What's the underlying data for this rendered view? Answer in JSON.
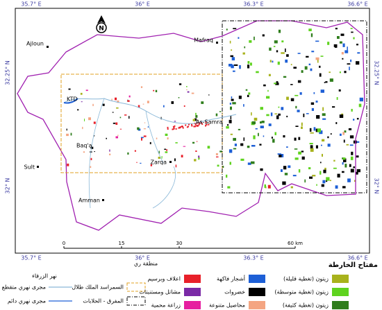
{
  "map": {
    "coords": {
      "top": [
        "35.7° E",
        "36° E",
        "36.3° E",
        "36.6° E"
      ],
      "bottom": [
        "35.7° E",
        "36° E",
        "36.3° E",
        "36.6° E"
      ],
      "left": [
        "32.25° N",
        "32° N"
      ],
      "right": [
        "32.25° N",
        "32° N"
      ]
    },
    "places": [
      "Ajloun",
      "Mafraq",
      "KTD",
      "As-Samra",
      "Baq'a",
      "Zarqa",
      "Sult",
      "Amman"
    ],
    "north": "N",
    "scale": [
      "0",
      "15",
      "30",
      "60 km"
    ],
    "legend": {
      "title": "مفتاح الخارطة",
      "items": [
        {
          "label": "زيتون (تغطية قليلة)",
          "color": "#a8b21c"
        },
        {
          "label": "زيتون (تغطية متوسطة)",
          "color": "#5fd31f"
        },
        {
          "label": "زيتون (تغطية كثيفة)",
          "color": "#2f7d1c"
        },
        {
          "label": "أشجار فاكهة",
          "color": "#1d5fd6"
        },
        {
          "label": "خضروات",
          "color": "#000000"
        },
        {
          "label": "محاصيل متنوعة",
          "color": "#f4a582"
        },
        {
          "label": "اعلاف وبرسيم",
          "color": "#e8202a"
        },
        {
          "label": "مشاتل ومستنبتات",
          "color": "#7a2aa6"
        },
        {
          "label": "زراعة محمية",
          "color": "#e61ea0"
        }
      ],
      "irrigation": {
        "title": "منطقة ري",
        "items": [
          "السمراسد الملك طلال",
          "المفرق - الحلابات"
        ]
      },
      "river": {
        "title": "نهر الزرقاء",
        "items": [
          "مجرى نهري متقطع",
          "مجرى نهري دائم"
        ]
      }
    }
  }
}
